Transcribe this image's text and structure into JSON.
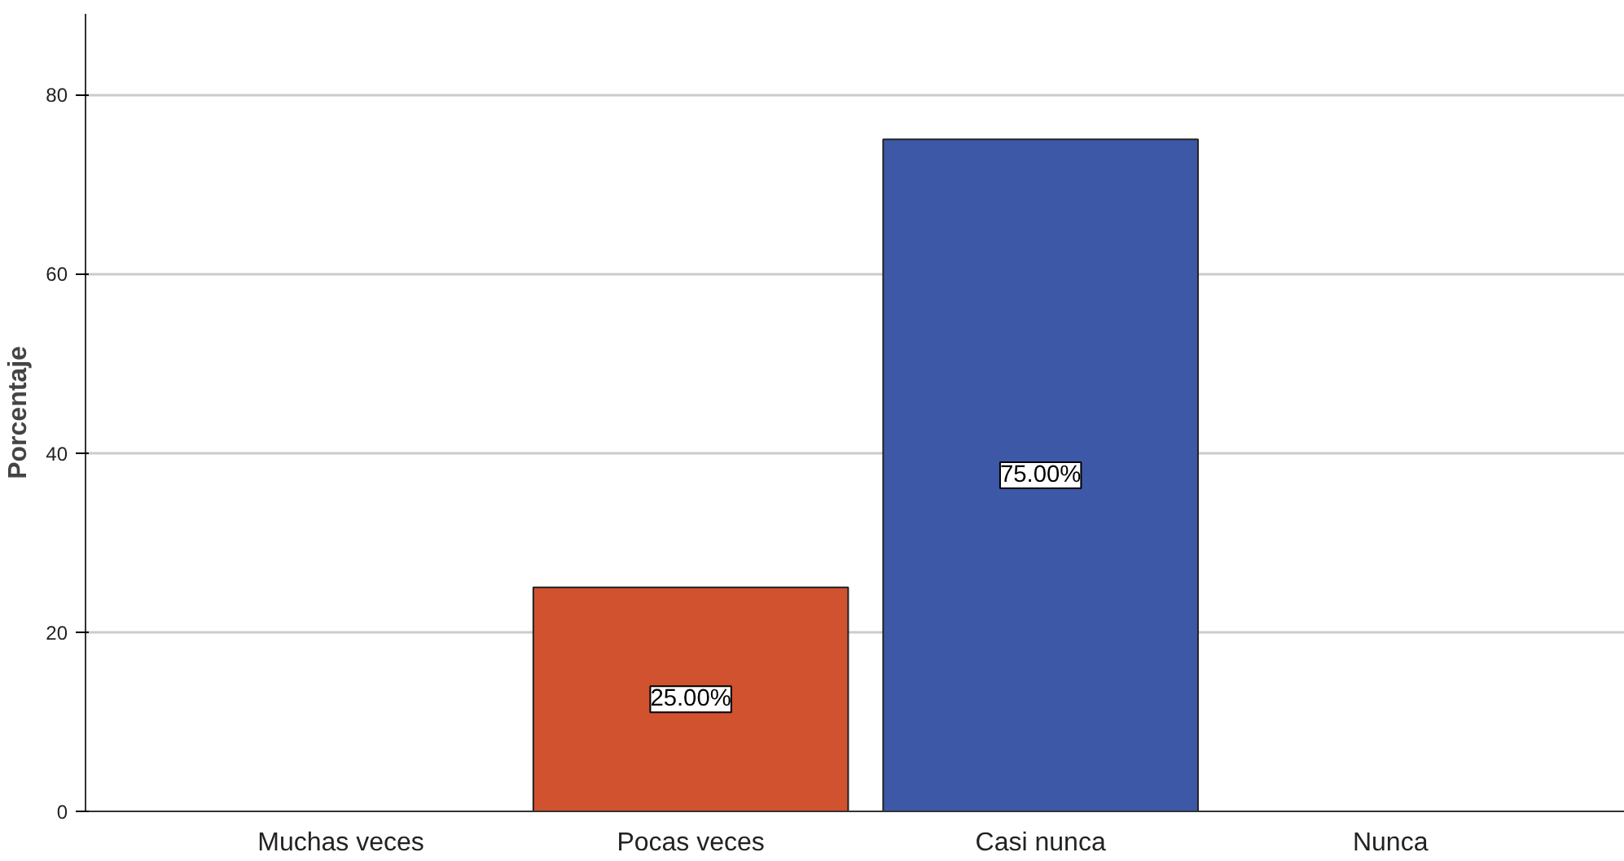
{
  "chart_data": {
    "type": "bar",
    "ylabel": "Porcentaje",
    "categories": [
      "Muchas veces",
      "Pocas veces",
      "Casi nunca",
      "Nunca"
    ],
    "values": [
      null,
      25,
      75,
      null
    ],
    "colors": [
      "#d0522f",
      "#d0522f",
      "#3e58a8",
      "#3e58a8"
    ],
    "value_labels": [
      null,
      "25.00%",
      "75.00%",
      null
    ],
    "ylim": [
      0,
      89
    ],
    "yticks": [
      0,
      20,
      40,
      60,
      80
    ],
    "grid": "y"
  }
}
